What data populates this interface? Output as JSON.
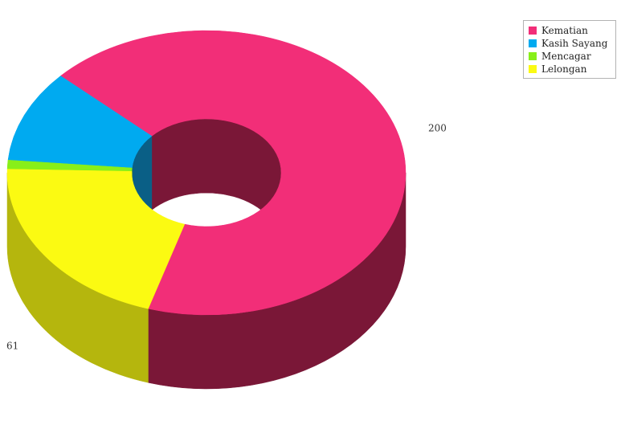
{
  "chart_data": {
    "type": "pie",
    "style": "3d-donut",
    "categories": [
      "Kematian",
      "Kasih Sayang",
      "Mencagar",
      "Lelongan"
    ],
    "values": [
      200,
      31,
      3,
      61
    ],
    "colors": [
      "#f22e78",
      "#00aaf0",
      "#88ef19",
      "#fbfa12"
    ],
    "side_colors": [
      "#7a1737",
      "#0a5f86",
      "#4d8a12",
      "#b5b60d"
    ],
    "data_labels": [
      "200",
      "31",
      "3",
      "61"
    ],
    "legend": {
      "placement": "top-right",
      "entries": [
        "Kematian",
        "Kasih Sayang",
        "Mencagar",
        "Lelongan"
      ]
    },
    "title": ""
  }
}
